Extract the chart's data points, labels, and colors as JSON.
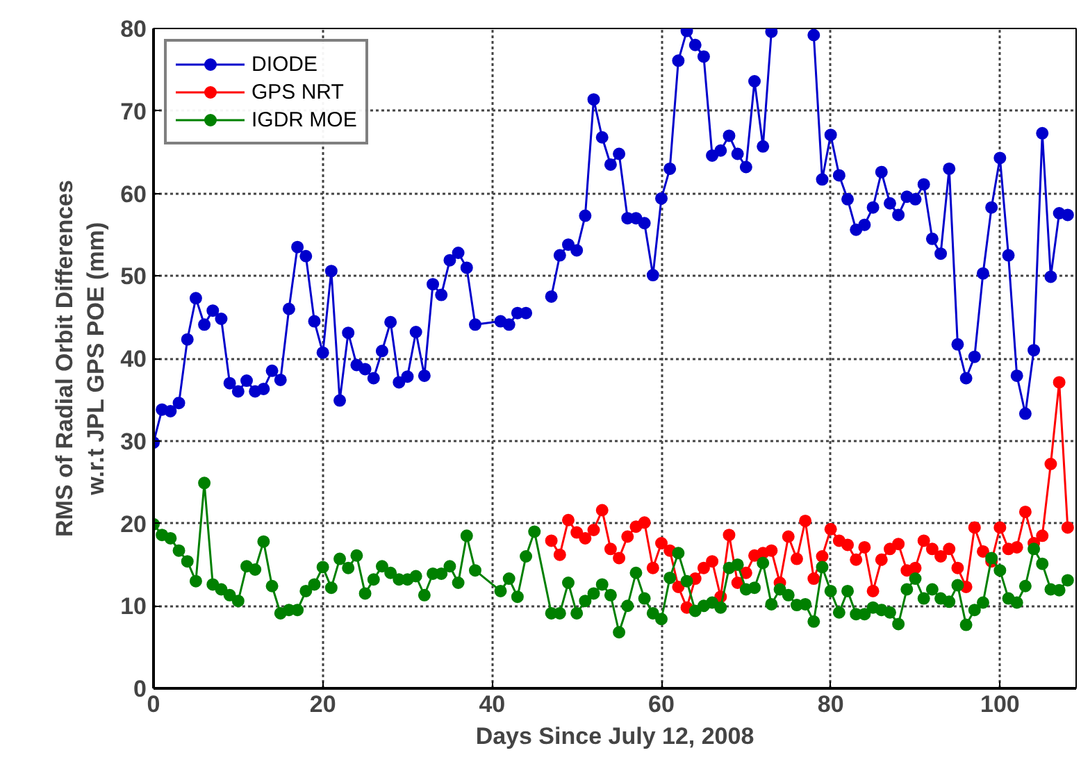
{
  "chart_data": {
    "type": "line",
    "xlabel": "Days Since July 12, 2008",
    "ylabel": "RMS of Radial Orbit Differences\nw.r.t JPL GPS POE (mm)",
    "xlim": [
      0,
      109
    ],
    "ylim": [
      0,
      80
    ],
    "xticks": [
      0,
      20,
      40,
      60,
      80,
      100
    ],
    "yticks": [
      0,
      10,
      20,
      30,
      40,
      50,
      60,
      70,
      80
    ],
    "grid": true,
    "legend": "top left",
    "marker": "circle",
    "line_style": "solid",
    "series": [
      {
        "name": "DIODE",
        "color": "#0000cc",
        "x": [
          0,
          1,
          2,
          3,
          4,
          5,
          6,
          7,
          8,
          9,
          10,
          11,
          12,
          13,
          14,
          15,
          16,
          17,
          18,
          19,
          20,
          21,
          22,
          23,
          24,
          25,
          26,
          27,
          28,
          29,
          30,
          31,
          32,
          33,
          34,
          35,
          36,
          37,
          38,
          41,
          42,
          43,
          44,
          45.5,
          47,
          48,
          49,
          50,
          51,
          52,
          53,
          54,
          55,
          56,
          57,
          58,
          59,
          60,
          61,
          62,
          63,
          64,
          65,
          66,
          67,
          68,
          69,
          70,
          71,
          72,
          73,
          75.5,
          78,
          79,
          80,
          81,
          82,
          83,
          84,
          85,
          86,
          87,
          88,
          89,
          90,
          91,
          92,
          93,
          94,
          95,
          96,
          97,
          98,
          99,
          100,
          101,
          102,
          103,
          104,
          105,
          106,
          107,
          108
        ],
        "values": [
          29.8,
          33.8,
          33.6,
          34.6,
          42.3,
          47.3,
          44.1,
          45.8,
          44.8,
          37,
          36,
          37.3,
          36,
          36.3,
          38.5,
          37.4,
          46,
          53.5,
          52.4,
          44.5,
          40.7,
          50.6,
          34.9,
          43.1,
          39.2,
          38.7,
          37.6,
          40.9,
          44.4,
          37.1,
          37.8,
          43.2,
          37.9,
          49,
          47.7,
          51.9,
          52.8,
          51,
          44.1,
          44.5,
          44.1,
          45.5,
          45.5,
          null,
          47.5,
          52.5,
          53.8,
          53.1,
          57.3,
          71.4,
          66.8,
          63.5,
          64.8,
          57,
          57,
          56.4,
          50.1,
          59.4,
          63,
          76.1,
          79.7,
          78,
          76.6,
          64.6,
          65.2,
          67,
          64.8,
          63.2,
          73.6,
          65.7,
          79.6,
          null,
          79.2,
          61.7,
          67.1,
          62.2,
          59.3,
          55.6,
          56.2,
          58.3,
          62.6,
          58.8,
          57.4,
          59.6,
          59.3,
          61.1,
          54.5,
          52.7,
          63,
          41.7,
          37.6,
          40.2,
          50.3,
          58.3,
          64.3,
          52.5,
          37.9,
          33.3,
          41,
          67.3,
          49.9,
          57.6,
          57.4
        ]
      },
      {
        "name": "GPS NRT",
        "color": "#ff0000",
        "x": [
          47,
          48,
          49,
          50,
          51,
          52,
          53,
          54,
          55,
          56,
          57,
          58,
          59,
          60,
          61,
          62,
          63,
          64,
          65,
          66,
          67,
          68,
          69,
          70,
          71,
          72,
          73,
          74,
          75,
          76,
          77,
          78,
          79,
          80,
          81,
          82,
          83,
          84,
          85,
          86,
          87,
          88,
          89,
          90,
          91,
          92,
          93,
          94,
          95,
          96,
          97,
          98,
          99,
          100,
          101,
          102,
          103,
          104,
          105,
          106,
          107,
          108
        ],
        "values": [
          17.9,
          16.2,
          20.4,
          18.9,
          18.2,
          19.2,
          21.6,
          16.9,
          15.8,
          18.4,
          19.6,
          20.1,
          14.6,
          17.6,
          16.7,
          12.3,
          9.8,
          13.3,
          14.6,
          15.4,
          11.1,
          18.6,
          12.8,
          14,
          16.1,
          16.4,
          16.7,
          12.8,
          18.4,
          15.7,
          20.3,
          13.3,
          16,
          19.3,
          17.9,
          17.4,
          15.6,
          17.1,
          11.8,
          15.6,
          16.9,
          17.5,
          14.3,
          14.6,
          17.9,
          16.9,
          16,
          16.9,
          14.6,
          12.3,
          19.5,
          16.6,
          15.4,
          19.5,
          16.9,
          17.1,
          21.4,
          17.6,
          18.5,
          27.2,
          37.1,
          19.5
        ]
      },
      {
        "name": "IGDR MOE",
        "color": "#008000",
        "x": [
          0,
          1,
          2,
          3,
          4,
          5,
          6,
          7,
          8,
          9,
          10,
          11,
          12,
          13,
          14,
          15,
          16,
          17,
          18,
          19,
          20,
          21,
          22,
          23,
          24,
          25,
          26,
          27,
          28,
          29,
          30,
          31,
          32,
          33,
          34,
          35,
          36,
          37,
          38,
          41,
          42,
          43,
          44,
          45,
          47,
          48,
          49,
          50,
          51,
          52,
          53,
          54,
          55,
          56,
          57,
          58,
          59,
          60,
          61,
          62,
          63,
          64,
          65,
          66,
          67,
          68,
          69,
          70,
          71,
          72,
          73,
          74,
          75,
          76,
          77,
          78,
          79,
          80,
          81,
          82,
          83,
          84,
          85,
          86,
          87,
          88,
          89,
          90,
          91,
          92,
          93,
          94,
          95,
          96,
          97,
          98,
          99,
          100,
          101,
          102,
          103,
          104,
          105,
          106,
          107,
          108
        ],
        "values": [
          19.9,
          18.6,
          18.2,
          16.7,
          15.4,
          13,
          24.9,
          12.6,
          12,
          11.3,
          10.6,
          14.8,
          14.4,
          17.8,
          12.4,
          9.1,
          9.5,
          9.5,
          11.8,
          12.6,
          14.7,
          12.2,
          15.7,
          14.6,
          16.1,
          11.5,
          13.2,
          14.8,
          14,
          13.2,
          13.2,
          13.6,
          11.3,
          13.9,
          13.9,
          14.8,
          12.8,
          18.5,
          14.3,
          11.8,
          13.3,
          11.1,
          16,
          19,
          9.1,
          9.1,
          12.8,
          9.1,
          10.6,
          11.5,
          12.6,
          11.3,
          6.8,
          10,
          14,
          10.9,
          9.1,
          8.4,
          13.4,
          16.4,
          13,
          9.4,
          10,
          10.4,
          9.8,
          14.6,
          15,
          12,
          12.2,
          15.2,
          10.2,
          12,
          11.3,
          10.1,
          10.2,
          8.1,
          14.7,
          11.8,
          9.2,
          11.8,
          9,
          9,
          9.8,
          9.5,
          9.2,
          7.8,
          12,
          13.3,
          10.9,
          12,
          10.9,
          10.5,
          12.5,
          7.7,
          9.5,
          10.4,
          15.8,
          14.3,
          10.9,
          10.4,
          12.4,
          16.9,
          15.1,
          12,
          11.9,
          13.1
        ]
      }
    ]
  }
}
